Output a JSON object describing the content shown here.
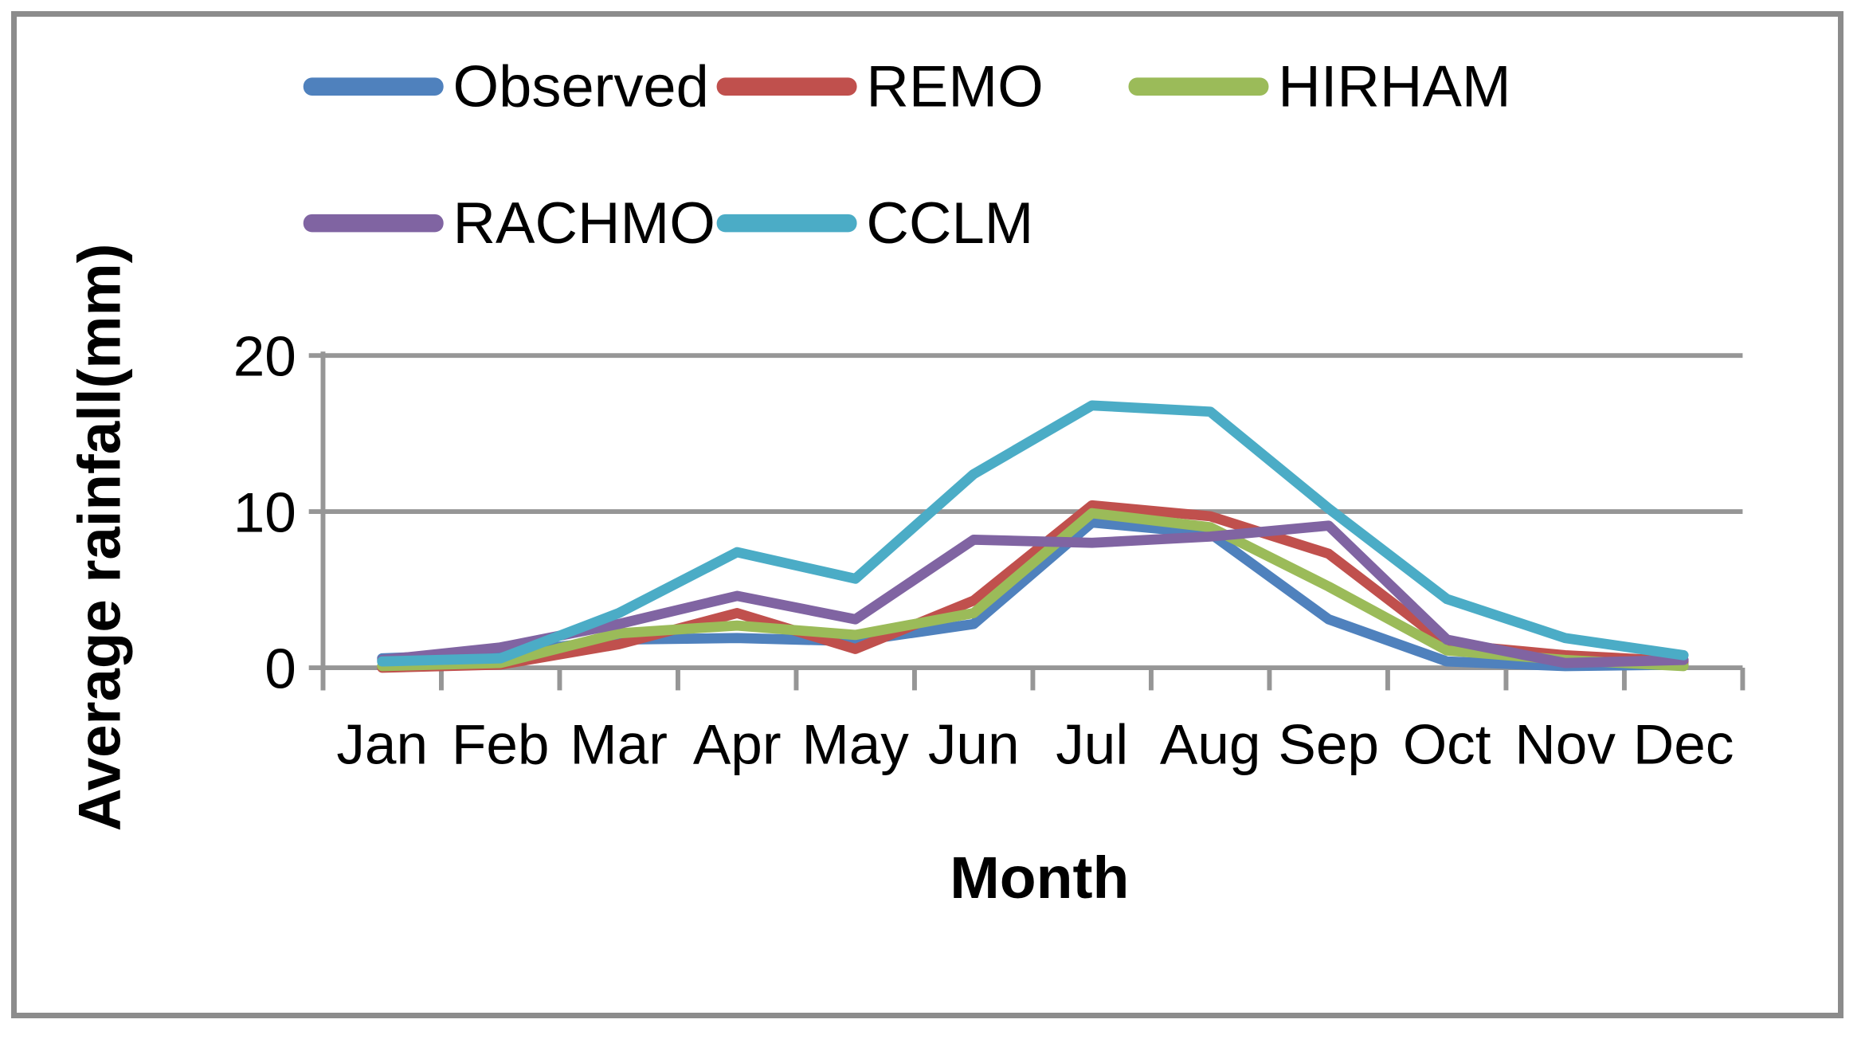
{
  "chart_data": {
    "type": "line",
    "title": "",
    "xlabel": "Month",
    "ylabel": "Average rainfall(mm)",
    "categories": [
      "Jan",
      "Feb",
      "Mar",
      "Apr",
      "May",
      "Jun",
      "Jul",
      "Aug",
      "Sep",
      "Oct",
      "Nov",
      "Dec"
    ],
    "yticks": [
      0,
      10,
      20
    ],
    "ylim": [
      0,
      20
    ],
    "grid": "horizontal-only",
    "legend_position": "top-two-rows",
    "legend_rows": [
      [
        "Observed",
        "REMO",
        "HIRHAM"
      ],
      [
        "RACHMO",
        "CCLM"
      ]
    ],
    "series": [
      {
        "name": "Observed",
        "color": "#4F81BD",
        "values": [
          0.6,
          0.9,
          1.8,
          1.9,
          1.7,
          2.8,
          9.3,
          8.6,
          3.1,
          0.4,
          0.1,
          0.2
        ]
      },
      {
        "name": "REMO",
        "color": "#C0504D",
        "values": [
          0.0,
          0.2,
          1.5,
          3.5,
          1.2,
          4.3,
          10.4,
          9.7,
          7.3,
          1.5,
          0.8,
          0.4
        ]
      },
      {
        "name": "HIRHAM",
        "color": "#9BBB59",
        "values": [
          0.1,
          0.3,
          2.2,
          2.7,
          2.1,
          3.5,
          9.9,
          9.0,
          5.2,
          1.1,
          0.5,
          0.1
        ]
      },
      {
        "name": "RACHMO",
        "color": "#8064A2",
        "values": [
          0.5,
          1.3,
          2.8,
          4.6,
          3.1,
          8.2,
          8.0,
          8.4,
          9.1,
          1.8,
          0.3,
          0.5
        ]
      },
      {
        "name": "CCLM",
        "color": "#4BACC6",
        "values": [
          0.4,
          0.6,
          3.5,
          7.4,
          5.7,
          12.4,
          16.8,
          16.4,
          10.2,
          4.4,
          1.9,
          0.8
        ]
      }
    ],
    "colors": {
      "gridline": "#969696",
      "axis_line": "#969696",
      "frame_border": "#8C8C8C",
      "label_text": "#000000"
    }
  }
}
